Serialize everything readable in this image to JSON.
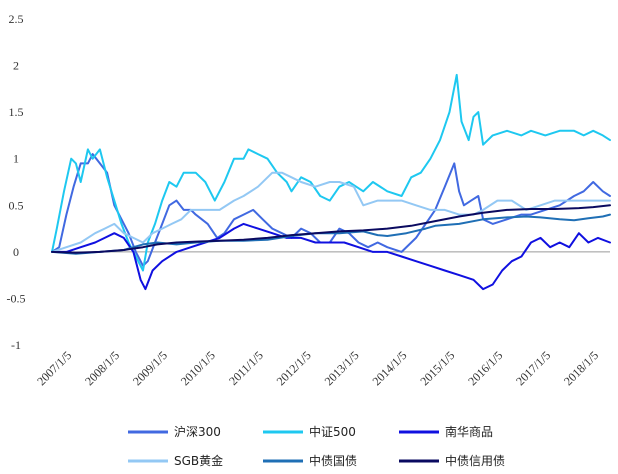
{
  "chart_data": {
    "type": "line",
    "title": "",
    "xlabel": "",
    "ylabel": "",
    "ylim": [
      -1,
      2.5
    ],
    "yticks": [
      "-1",
      "-0.5",
      "0",
      "0.5",
      "1",
      "1.5",
      "2",
      "2.5"
    ],
    "x_tick_labels": [
      "2007/1/5",
      "2008/1/5",
      "2009/1/5",
      "2010/1/5",
      "2011/1/5",
      "2012/1/5",
      "2013/1/5",
      "2014/1/5",
      "2015/1/5",
      "2016/1/5",
      "2017/1/5",
      "2018/1/5"
    ],
    "x_range": [
      2007.0,
      2018.65
    ],
    "grid": false,
    "legend_position": "bottom",
    "series": [
      {
        "name": "沪深300",
        "color": "#4169e1",
        "points": [
          [
            2007.0,
            0.0
          ],
          [
            2007.15,
            0.05
          ],
          [
            2007.3,
            0.4
          ],
          [
            2007.45,
            0.7
          ],
          [
            2007.6,
            0.95
          ],
          [
            2007.75,
            0.95
          ],
          [
            2007.85,
            1.05
          ],
          [
            2008.0,
            0.95
          ],
          [
            2008.15,
            0.85
          ],
          [
            2008.3,
            0.5
          ],
          [
            2008.45,
            0.35
          ],
          [
            2008.6,
            0.2
          ],
          [
            2008.75,
            0.0
          ],
          [
            2008.9,
            -0.15
          ],
          [
            2009.0,
            -0.1
          ],
          [
            2009.15,
            0.1
          ],
          [
            2009.3,
            0.3
          ],
          [
            2009.45,
            0.5
          ],
          [
            2009.6,
            0.55
          ],
          [
            2009.75,
            0.45
          ],
          [
            2009.9,
            0.45
          ],
          [
            2010.0,
            0.4
          ],
          [
            2010.25,
            0.3
          ],
          [
            2010.45,
            0.15
          ],
          [
            2010.6,
            0.2
          ],
          [
            2010.8,
            0.35
          ],
          [
            2011.0,
            0.4
          ],
          [
            2011.2,
            0.45
          ],
          [
            2011.4,
            0.35
          ],
          [
            2011.6,
            0.25
          ],
          [
            2011.8,
            0.2
          ],
          [
            2012.0,
            0.15
          ],
          [
            2012.2,
            0.25
          ],
          [
            2012.4,
            0.2
          ],
          [
            2012.6,
            0.1
          ],
          [
            2012.8,
            0.1
          ],
          [
            2013.0,
            0.25
          ],
          [
            2013.2,
            0.2
          ],
          [
            2013.4,
            0.1
          ],
          [
            2013.6,
            0.05
          ],
          [
            2013.8,
            0.1
          ],
          [
            2014.0,
            0.05
          ],
          [
            2014.3,
            0.0
          ],
          [
            2014.6,
            0.15
          ],
          [
            2014.8,
            0.3
          ],
          [
            2015.0,
            0.45
          ],
          [
            2015.2,
            0.7
          ],
          [
            2015.4,
            0.95
          ],
          [
            2015.5,
            0.65
          ],
          [
            2015.6,
            0.5
          ],
          [
            2015.75,
            0.55
          ],
          [
            2015.9,
            0.6
          ],
          [
            2016.0,
            0.35
          ],
          [
            2016.2,
            0.3
          ],
          [
            2016.5,
            0.35
          ],
          [
            2016.8,
            0.4
          ],
          [
            2017.0,
            0.4
          ],
          [
            2017.3,
            0.45
          ],
          [
            2017.6,
            0.5
          ],
          [
            2017.9,
            0.6
          ],
          [
            2018.1,
            0.65
          ],
          [
            2018.3,
            0.75
          ],
          [
            2018.5,
            0.65
          ],
          [
            2018.65,
            0.6
          ]
        ]
      },
      {
        "name": "中证500",
        "color": "#1ec8f0",
        "points": [
          [
            2007.0,
            0.0
          ],
          [
            2007.1,
            0.25
          ],
          [
            2007.25,
            0.65
          ],
          [
            2007.4,
            1.0
          ],
          [
            2007.5,
            0.95
          ],
          [
            2007.6,
            0.75
          ],
          [
            2007.75,
            1.1
          ],
          [
            2007.85,
            1.0
          ],
          [
            2008.0,
            1.1
          ],
          [
            2008.15,
            0.8
          ],
          [
            2008.3,
            0.55
          ],
          [
            2008.45,
            0.3
          ],
          [
            2008.6,
            0.1
          ],
          [
            2008.75,
            -0.05
          ],
          [
            2008.9,
            -0.2
          ],
          [
            2009.0,
            0.1
          ],
          [
            2009.15,
            0.3
          ],
          [
            2009.3,
            0.55
          ],
          [
            2009.45,
            0.75
          ],
          [
            2009.6,
            0.7
          ],
          [
            2009.75,
            0.85
          ],
          [
            2010.0,
            0.85
          ],
          [
            2010.2,
            0.75
          ],
          [
            2010.4,
            0.55
          ],
          [
            2010.6,
            0.75
          ],
          [
            2010.8,
            1.0
          ],
          [
            2011.0,
            1.0
          ],
          [
            2011.1,
            1.1
          ],
          [
            2011.3,
            1.05
          ],
          [
            2011.5,
            1.0
          ],
          [
            2011.7,
            0.85
          ],
          [
            2011.9,
            0.75
          ],
          [
            2012.0,
            0.65
          ],
          [
            2012.2,
            0.8
          ],
          [
            2012.4,
            0.75
          ],
          [
            2012.6,
            0.6
          ],
          [
            2012.8,
            0.55
          ],
          [
            2013.0,
            0.7
          ],
          [
            2013.2,
            0.75
          ],
          [
            2013.5,
            0.65
          ],
          [
            2013.7,
            0.75
          ],
          [
            2014.0,
            0.65
          ],
          [
            2014.3,
            0.6
          ],
          [
            2014.5,
            0.8
          ],
          [
            2014.7,
            0.85
          ],
          [
            2014.9,
            1.0
          ],
          [
            2015.1,
            1.2
          ],
          [
            2015.3,
            1.5
          ],
          [
            2015.45,
            1.9
          ],
          [
            2015.55,
            1.4
          ],
          [
            2015.7,
            1.2
          ],
          [
            2015.8,
            1.45
          ],
          [
            2015.9,
            1.5
          ],
          [
            2016.0,
            1.15
          ],
          [
            2016.2,
            1.25
          ],
          [
            2016.5,
            1.3
          ],
          [
            2016.8,
            1.25
          ],
          [
            2017.0,
            1.3
          ],
          [
            2017.3,
            1.25
          ],
          [
            2017.6,
            1.3
          ],
          [
            2017.9,
            1.3
          ],
          [
            2018.1,
            1.25
          ],
          [
            2018.3,
            1.3
          ],
          [
            2018.5,
            1.25
          ],
          [
            2018.65,
            1.2
          ]
        ]
      },
      {
        "name": "南华商品",
        "color": "#1010e0",
        "points": [
          [
            2007.0,
            0.0
          ],
          [
            2007.3,
            0.0
          ],
          [
            2007.6,
            0.05
          ],
          [
            2007.9,
            0.1
          ],
          [
            2008.1,
            0.15
          ],
          [
            2008.3,
            0.2
          ],
          [
            2008.5,
            0.15
          ],
          [
            2008.7,
            0.0
          ],
          [
            2008.85,
            -0.3
          ],
          [
            2008.95,
            -0.4
          ],
          [
            2009.1,
            -0.2
          ],
          [
            2009.3,
            -0.1
          ],
          [
            2009.6,
            0.0
          ],
          [
            2009.9,
            0.05
          ],
          [
            2010.2,
            0.1
          ],
          [
            2010.5,
            0.15
          ],
          [
            2010.8,
            0.25
          ],
          [
            2011.0,
            0.3
          ],
          [
            2011.3,
            0.25
          ],
          [
            2011.6,
            0.2
          ],
          [
            2011.9,
            0.15
          ],
          [
            2012.2,
            0.15
          ],
          [
            2012.5,
            0.1
          ],
          [
            2012.8,
            0.1
          ],
          [
            2013.1,
            0.1
          ],
          [
            2013.4,
            0.05
          ],
          [
            2013.7,
            0.0
          ],
          [
            2014.0,
            0.0
          ],
          [
            2014.3,
            -0.05
          ],
          [
            2014.6,
            -0.1
          ],
          [
            2014.9,
            -0.15
          ],
          [
            2015.2,
            -0.2
          ],
          [
            2015.5,
            -0.25
          ],
          [
            2015.8,
            -0.3
          ],
          [
            2016.0,
            -0.4
          ],
          [
            2016.2,
            -0.35
          ],
          [
            2016.4,
            -0.2
          ],
          [
            2016.6,
            -0.1
          ],
          [
            2016.8,
            -0.05
          ],
          [
            2017.0,
            0.1
          ],
          [
            2017.2,
            0.15
          ],
          [
            2017.4,
            0.05
          ],
          [
            2017.6,
            0.1
          ],
          [
            2017.8,
            0.05
          ],
          [
            2018.0,
            0.2
          ],
          [
            2018.2,
            0.1
          ],
          [
            2018.4,
            0.15
          ],
          [
            2018.65,
            0.1
          ]
        ]
      },
      {
        "name": "SGB黄金",
        "color": "#93c8f4",
        "points": [
          [
            2007.0,
            0.0
          ],
          [
            2007.3,
            0.05
          ],
          [
            2007.6,
            0.1
          ],
          [
            2007.9,
            0.2
          ],
          [
            2008.1,
            0.25
          ],
          [
            2008.3,
            0.3
          ],
          [
            2008.5,
            0.2
          ],
          [
            2008.7,
            0.15
          ],
          [
            2008.9,
            0.1
          ],
          [
            2009.1,
            0.2
          ],
          [
            2009.3,
            0.25
          ],
          [
            2009.5,
            0.3
          ],
          [
            2009.7,
            0.35
          ],
          [
            2009.9,
            0.45
          ],
          [
            2010.2,
            0.45
          ],
          [
            2010.5,
            0.45
          ],
          [
            2010.8,
            0.55
          ],
          [
            2011.0,
            0.6
          ],
          [
            2011.3,
            0.7
          ],
          [
            2011.6,
            0.85
          ],
          [
            2011.8,
            0.85
          ],
          [
            2012.0,
            0.8
          ],
          [
            2012.2,
            0.75
          ],
          [
            2012.5,
            0.7
          ],
          [
            2012.8,
            0.75
          ],
          [
            2013.0,
            0.75
          ],
          [
            2013.3,
            0.7
          ],
          [
            2013.5,
            0.5
          ],
          [
            2013.8,
            0.55
          ],
          [
            2014.0,
            0.55
          ],
          [
            2014.3,
            0.55
          ],
          [
            2014.6,
            0.5
          ],
          [
            2014.9,
            0.45
          ],
          [
            2015.2,
            0.45
          ],
          [
            2015.5,
            0.4
          ],
          [
            2015.8,
            0.4
          ],
          [
            2016.0,
            0.45
          ],
          [
            2016.3,
            0.55
          ],
          [
            2016.6,
            0.55
          ],
          [
            2016.9,
            0.45
          ],
          [
            2017.2,
            0.5
          ],
          [
            2017.5,
            0.55
          ],
          [
            2017.8,
            0.55
          ],
          [
            2018.0,
            0.55
          ],
          [
            2018.3,
            0.55
          ],
          [
            2018.65,
            0.55
          ]
        ]
      },
      {
        "name": "中债国债",
        "color": "#1f6fb5",
        "points": [
          [
            2007.0,
            0.0
          ],
          [
            2007.5,
            -0.02
          ],
          [
            2008.0,
            0.0
          ],
          [
            2008.5,
            0.02
          ],
          [
            2008.9,
            0.08
          ],
          [
            2009.2,
            0.1
          ],
          [
            2009.6,
            0.08
          ],
          [
            2010.0,
            0.1
          ],
          [
            2010.5,
            0.12
          ],
          [
            2011.0,
            0.12
          ],
          [
            2011.5,
            0.13
          ],
          [
            2012.0,
            0.17
          ],
          [
            2012.5,
            0.2
          ],
          [
            2013.0,
            0.2
          ],
          [
            2013.5,
            0.22
          ],
          [
            2013.8,
            0.18
          ],
          [
            2014.0,
            0.17
          ],
          [
            2014.4,
            0.2
          ],
          [
            2014.8,
            0.25
          ],
          [
            2015.0,
            0.28
          ],
          [
            2015.5,
            0.3
          ],
          [
            2016.0,
            0.35
          ],
          [
            2016.5,
            0.37
          ],
          [
            2016.9,
            0.38
          ],
          [
            2017.2,
            0.37
          ],
          [
            2017.6,
            0.35
          ],
          [
            2017.9,
            0.34
          ],
          [
            2018.2,
            0.36
          ],
          [
            2018.5,
            0.38
          ],
          [
            2018.65,
            0.4
          ]
        ]
      },
      {
        "name": "中债信用债",
        "color": "#0a0a60",
        "points": [
          [
            2007.0,
            0.0
          ],
          [
            2007.5,
            -0.01
          ],
          [
            2008.0,
            0.0
          ],
          [
            2008.5,
            0.02
          ],
          [
            2008.9,
            0.05
          ],
          [
            2009.2,
            0.08
          ],
          [
            2009.6,
            0.1
          ],
          [
            2010.0,
            0.11
          ],
          [
            2010.5,
            0.12
          ],
          [
            2011.0,
            0.13
          ],
          [
            2011.5,
            0.15
          ],
          [
            2012.0,
            0.18
          ],
          [
            2012.5,
            0.2
          ],
          [
            2013.0,
            0.22
          ],
          [
            2013.5,
            0.23
          ],
          [
            2014.0,
            0.25
          ],
          [
            2014.5,
            0.28
          ],
          [
            2015.0,
            0.33
          ],
          [
            2015.5,
            0.38
          ],
          [
            2016.0,
            0.42
          ],
          [
            2016.5,
            0.45
          ],
          [
            2017.0,
            0.46
          ],
          [
            2017.5,
            0.46
          ],
          [
            2018.0,
            0.47
          ],
          [
            2018.3,
            0.48
          ],
          [
            2018.65,
            0.5
          ]
        ]
      }
    ]
  }
}
